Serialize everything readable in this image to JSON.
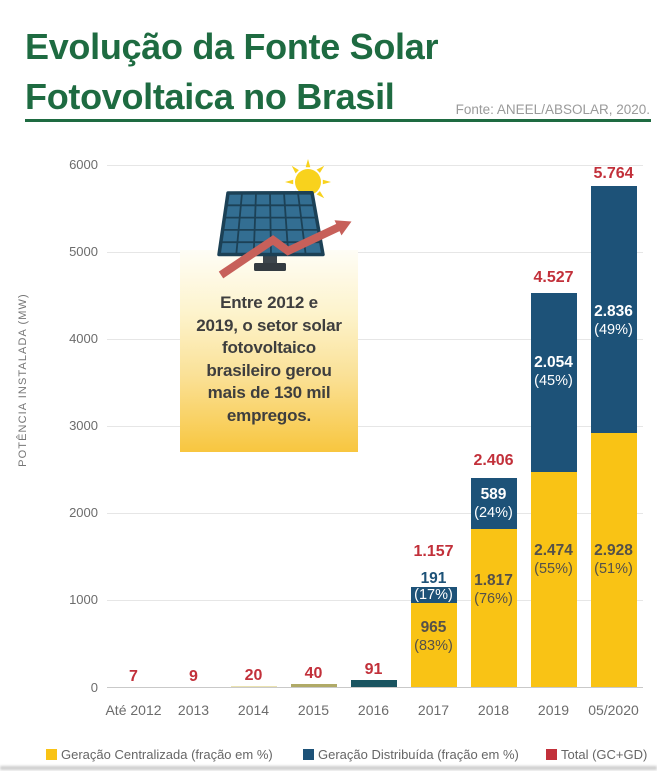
{
  "header": {
    "title_line1": "Evolução da Fonte Solar",
    "title_line2": "Fotovoltaica no Brasil",
    "title_color": "#1e6b41",
    "source": "Fonte: ANEEL/ABSOLAR, 2020."
  },
  "annotation": {
    "lines": [
      "Entre 2012 e",
      "2019, o setor solar",
      "fotovoltaico",
      "brasileiro gerou",
      "mais de 130 mil",
      "empregos."
    ]
  },
  "chart_data": {
    "type": "bar",
    "stacked": true,
    "ylabel": "POTÊNCIA INSTALADA (MW)",
    "ylim": [
      0,
      6000
    ],
    "yticks": [
      0,
      1000,
      2000,
      3000,
      4000,
      5000,
      6000
    ],
    "grid": true,
    "legend_position": "bottom",
    "categories": [
      "Até 2012",
      "2013",
      "2014",
      "2015",
      "2016",
      "2017",
      "2018",
      "2019",
      "05/2020"
    ],
    "series": [
      {
        "name": "Geração Centralizada (fração em %)",
        "color": "#f9c315",
        "values": [
          7,
          9,
          20,
          40,
          0,
          965,
          1817,
          2474,
          2928
        ],
        "value_labels": [
          "",
          "",
          "",
          "",
          "",
          "965",
          "1.817",
          "2.474",
          "2.928"
        ],
        "pct_labels": [
          "",
          "",
          "",
          "",
          "",
          "(83%)",
          "(76%)",
          "(55%)",
          "(51%)"
        ]
      },
      {
        "name": "Geração Distribuída (fração em %)",
        "color": "#1d5278",
        "values": [
          0,
          0,
          0,
          0,
          91,
          191,
          589,
          2054,
          2836
        ],
        "value_labels": [
          "",
          "",
          "",
          "",
          "",
          "191",
          "589",
          "2.054",
          "2.836"
        ],
        "pct_labels": [
          "",
          "",
          "",
          "",
          "",
          "(17%)",
          "(24%)",
          "(45%)",
          "(49%)"
        ]
      }
    ],
    "totals": {
      "name": "Total (GC+GD)",
      "color": "#c2303a",
      "values": [
        7,
        9,
        20,
        40,
        91,
        1157,
        2406,
        4527,
        5764
      ],
      "labels": [
        "7",
        "9",
        "20",
        "40",
        "91",
        "1.157",
        "2.406",
        "4.527",
        "5.764"
      ]
    }
  }
}
